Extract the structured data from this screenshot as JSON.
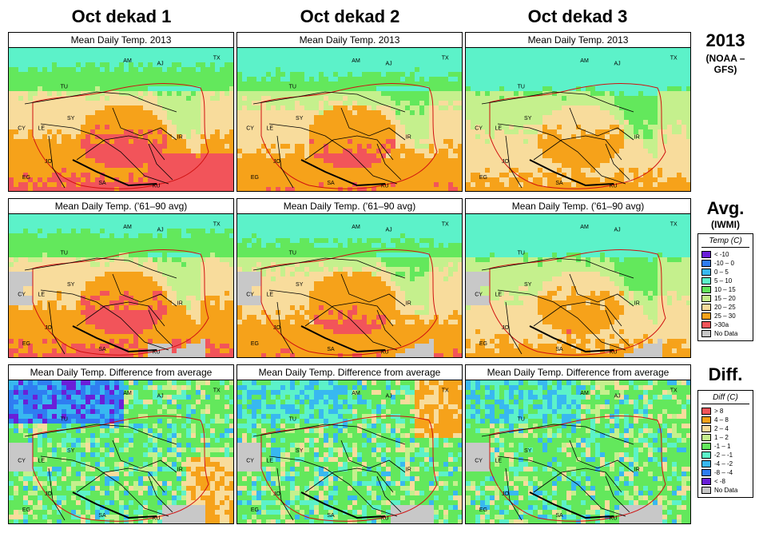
{
  "columns": [
    {
      "title": "Oct dekad 1"
    },
    {
      "title": "Oct dekad 2"
    },
    {
      "title": "Oct dekad 3"
    }
  ],
  "rows": [
    {
      "label": "2013",
      "sub": "(NOAA –GFS)",
      "panel_title": "Mean Daily Temp. 2013",
      "kind": "temp"
    },
    {
      "label": "Avg.",
      "sub": "(IWMI)",
      "panel_title": "Mean Daily Temp. ('61–90 avg)",
      "kind": "temp"
    },
    {
      "label": "Diff.",
      "sub": "",
      "panel_title": "Mean Daily Temp. Difference from average",
      "kind": "diff"
    }
  ],
  "country_labels": [
    "AM",
    "AJ",
    "TX",
    "TU",
    "CY",
    "SY",
    "LE",
    "IR",
    "JO",
    "EG",
    "SA",
    "KU"
  ],
  "temp_legend": {
    "title": "Temp (C)",
    "items": [
      {
        "label": "< -10",
        "color": "#6a1fd8"
      },
      {
        "label": "-10 – 0",
        "color": "#2f7df2"
      },
      {
        "label": "0 – 5",
        "color": "#38b8f0"
      },
      {
        "label": "5 – 10",
        "color": "#5cf2c9"
      },
      {
        "label": "10 – 15",
        "color": "#63e85c"
      },
      {
        "label": "15 – 20",
        "color": "#c5f08d"
      },
      {
        "label": "20 – 25",
        "color": "#f8dc9c"
      },
      {
        "label": "25 – 30",
        "color": "#f6a21a"
      },
      {
        "label": ">30a",
        "color": "#f2545a"
      },
      {
        "label": "No Data",
        "color": "#c8c8c8"
      }
    ]
  },
  "diff_legend": {
    "title": "Diff (C)",
    "items": [
      {
        "label": "> 8",
        "color": "#f2545a"
      },
      {
        "label": "4 – 8",
        "color": "#f6a21a"
      },
      {
        "label": "2 – 4",
        "color": "#f8dc9c"
      },
      {
        "label": "1 – 2",
        "color": "#c5f08d"
      },
      {
        "label": "-1 – 1",
        "color": "#63e85c"
      },
      {
        "label": "-2 – -1",
        "color": "#5cf2c9"
      },
      {
        "label": "-4 – -2",
        "color": "#38b8f0"
      },
      {
        "label": "-8 – -4",
        "color": "#2f7df2"
      },
      {
        "label": "< -8",
        "color": "#6a1fd8"
      },
      {
        "label": "No Data",
        "color": "#c8c8c8"
      }
    ]
  }
}
